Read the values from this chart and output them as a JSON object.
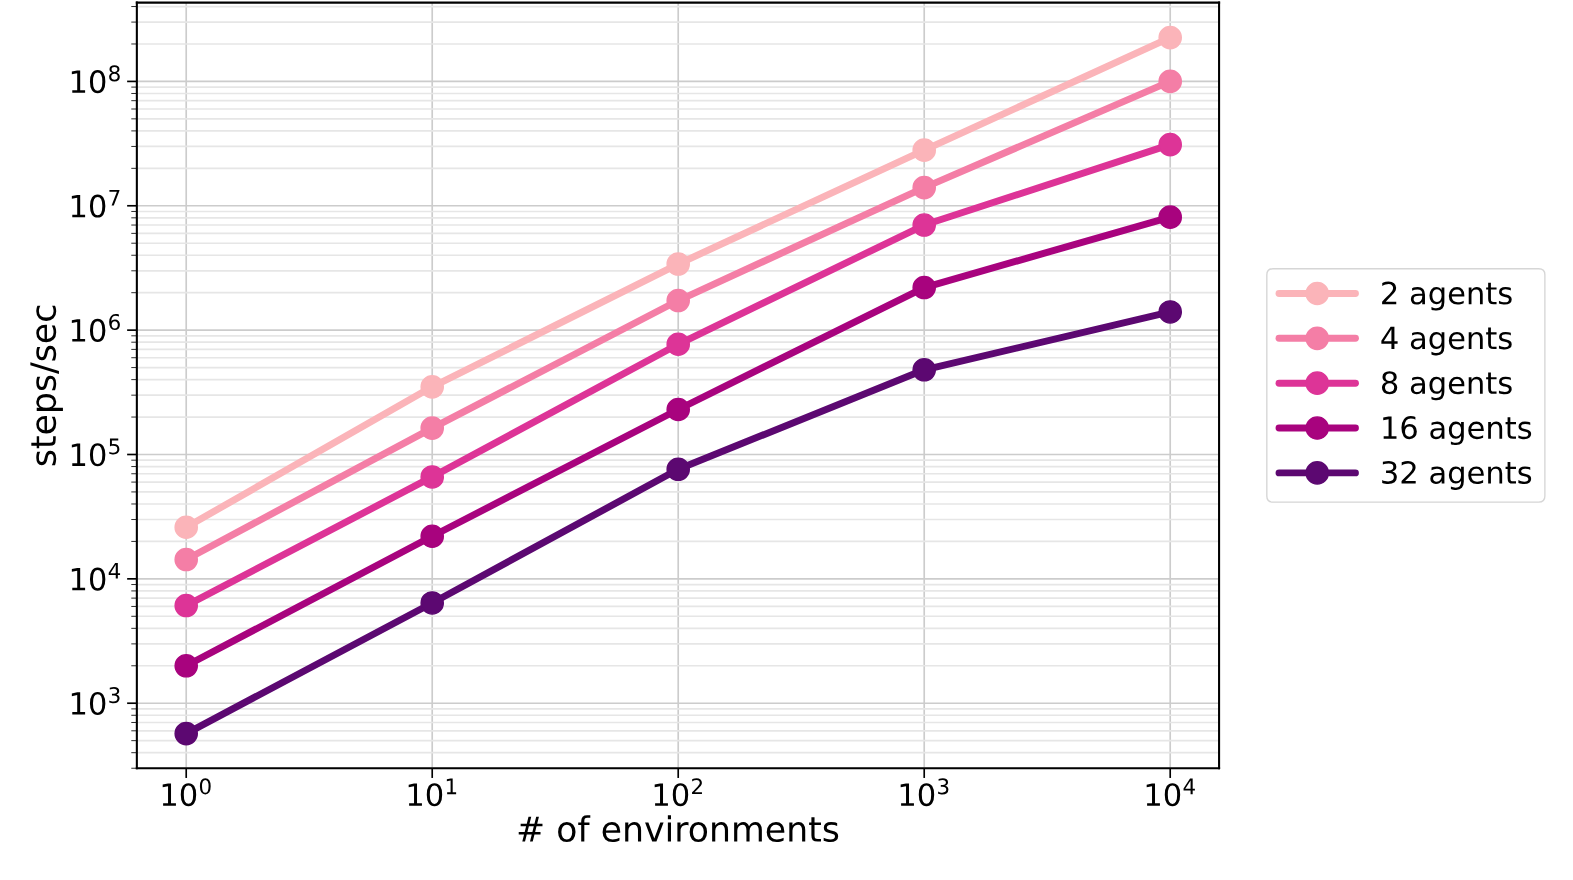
{
  "chart_data": {
    "type": "line",
    "xlabel": "# of environments",
    "ylabel": "steps/sec",
    "log": "xy",
    "x": [
      1,
      10,
      100,
      1000,
      10000
    ],
    "series": [
      {
        "name": "2 agents",
        "color": "#fbb4b9",
        "values": [
          26000,
          350000,
          3400000,
          28000000,
          225000000
        ]
      },
      {
        "name": "4 agents",
        "color": "#f47ea6",
        "values": [
          14300,
          163000,
          1730000,
          14000000,
          100000000
        ]
      },
      {
        "name": "8 agents",
        "color": "#dd3497",
        "values": [
          6100,
          66000,
          770000,
          7000000,
          31000000
        ]
      },
      {
        "name": "16 agents",
        "color": "#a8037e",
        "values": [
          2000,
          22000,
          230000,
          2200000,
          8100000
        ]
      },
      {
        "name": "32 agents",
        "color": "#5c0871",
        "values": [
          570,
          6400,
          76000,
          480000,
          1400000
        ]
      }
    ],
    "xlim": [
      0.63,
      15800
    ],
    "ylim": [
      300,
      430000000
    ],
    "xticks": [
      {
        "value": 1,
        "label": "10$^{0}$"
      },
      {
        "value": 10,
        "label": "10$^{1}$"
      },
      {
        "value": 100,
        "label": "10$^{2}$"
      },
      {
        "value": 1000,
        "label": "10$^{3}$"
      },
      {
        "value": 10000,
        "label": "10$^{4}$"
      }
    ],
    "yticks": [
      {
        "value": 1000,
        "label": "10$^{3}$"
      },
      {
        "value": 10000,
        "label": "10$^{4}$"
      },
      {
        "value": 100000,
        "label": "10$^{5}$"
      },
      {
        "value": 1000000,
        "label": "10$^{6}$"
      },
      {
        "value": 10000000,
        "label": "10$^{7}$"
      },
      {
        "value": 100000000,
        "label": "10$^{8}$"
      }
    ],
    "grid": true,
    "legend": "right",
    "marker": "circle",
    "line_style": "solid"
  }
}
